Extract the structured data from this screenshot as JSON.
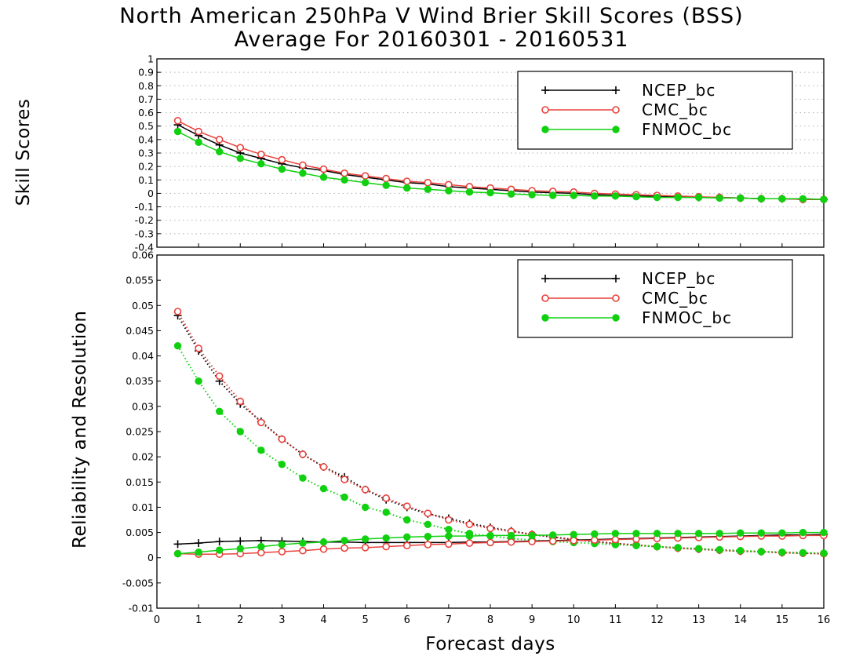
{
  "title_line1": "North American 250hPa V Wind Brier Skill Scores (BSS)",
  "title_line2": "Average For 20160301 - 20160531",
  "xlabel": "Forecast days",
  "colors": {
    "ncep": "#000000",
    "cmc": "#e8413c",
    "fnmoc": "#10d010",
    "grid": "#b0b0b0"
  },
  "legend_labels": [
    "NCEP_bc",
    "CMC_bc",
    "FNMOC_bc"
  ],
  "chart_data": [
    {
      "type": "line",
      "ylabel": "Skill Scores",
      "x": [
        0.5,
        1,
        1.5,
        2,
        2.5,
        3,
        3.5,
        4,
        4.5,
        5,
        5.5,
        6,
        6.5,
        7,
        7.5,
        8,
        8.5,
        9,
        9.5,
        10,
        10.5,
        11,
        11.5,
        12,
        12.5,
        13,
        13.5,
        14,
        14.5,
        15,
        15.5,
        16
      ],
      "xlim": [
        0,
        16
      ],
      "ylim": [
        -0.4,
        1
      ],
      "xticks": [
        "0",
        "1",
        "2",
        "3",
        "4",
        "5",
        "6",
        "7",
        "8",
        "9",
        "10",
        "11",
        "12",
        "13",
        "14",
        "15",
        "16"
      ],
      "yticks": [
        "1",
        "0.9",
        "0.8",
        "0.7",
        "0.6",
        "0.5",
        "0.4",
        "0.3",
        "0.2",
        "0.1",
        "0",
        "-0.1",
        "-0.2",
        "-0.3",
        "-0.4"
      ],
      "grid": true,
      "legend": "top-right",
      "series": [
        {
          "name": "NCEP_bc",
          "marker": "plus",
          "style": "solid",
          "values": [
            0.51,
            0.43,
            0.36,
            0.3,
            0.26,
            0.22,
            0.19,
            0.17,
            0.14,
            0.12,
            0.1,
            0.08,
            0.07,
            0.05,
            0.04,
            0.03,
            0.02,
            0.01,
            0.005,
            0.0,
            -0.01,
            -0.015,
            -0.02,
            -0.02,
            -0.025,
            -0.03,
            -0.03,
            -0.035,
            -0.04,
            -0.04,
            -0.045,
            -0.045
          ]
        },
        {
          "name": "CMC_bc",
          "marker": "circle-open",
          "style": "solid",
          "values": [
            0.54,
            0.46,
            0.4,
            0.34,
            0.29,
            0.25,
            0.21,
            0.18,
            0.15,
            0.13,
            0.11,
            0.09,
            0.08,
            0.065,
            0.05,
            0.04,
            0.03,
            0.02,
            0.015,
            0.01,
            0.0,
            -0.005,
            -0.01,
            -0.015,
            -0.02,
            -0.025,
            -0.03,
            -0.035,
            -0.04,
            -0.04,
            -0.045,
            -0.045
          ]
        },
        {
          "name": "FNMOC_bc",
          "marker": "circle-filled",
          "style": "solid",
          "values": [
            0.46,
            0.38,
            0.31,
            0.26,
            0.22,
            0.18,
            0.15,
            0.12,
            0.1,
            0.08,
            0.06,
            0.04,
            0.03,
            0.02,
            0.01,
            0.005,
            -0.005,
            -0.01,
            -0.015,
            -0.015,
            -0.02,
            -0.02,
            -0.025,
            -0.03,
            -0.03,
            -0.03,
            -0.035,
            -0.035,
            -0.04,
            -0.04,
            -0.04,
            -0.045
          ]
        }
      ]
    },
    {
      "type": "line",
      "ylabel": "Reliability and Resolution",
      "x": [
        0.5,
        1,
        1.5,
        2,
        2.5,
        3,
        3.5,
        4,
        4.5,
        5,
        5.5,
        6,
        6.5,
        7,
        7.5,
        8,
        8.5,
        9,
        9.5,
        10,
        10.5,
        11,
        11.5,
        12,
        12.5,
        13,
        13.5,
        14,
        14.5,
        15,
        15.5,
        16
      ],
      "xlim": [
        0,
        16
      ],
      "ylim": [
        -0.01,
        0.06
      ],
      "xticks": [
        "0",
        "1",
        "2",
        "3",
        "4",
        "5",
        "6",
        "7",
        "8",
        "9",
        "10",
        "11",
        "12",
        "13",
        "14",
        "15",
        "16"
      ],
      "yticks": [
        "0.06",
        "0.055",
        "0.05",
        "0.045",
        "0.04",
        "0.035",
        "0.03",
        "0.025",
        "0.02",
        "0.015",
        "0.01",
        "0.005",
        "0",
        "-0.005",
        "-0.01"
      ],
      "grid": false,
      "legend": "top-right",
      "series": [
        {
          "name": "NCEP_bc",
          "marker": "plus",
          "style": "dotted",
          "values": [
            0.048,
            0.041,
            0.035,
            0.0305,
            0.027,
            0.0235,
            0.0205,
            0.018,
            0.016,
            0.0135,
            0.0115,
            0.01,
            0.0087,
            0.0078,
            0.0068,
            0.006,
            0.0053,
            0.0046,
            0.0041,
            0.0036,
            0.0032,
            0.0028,
            0.0025,
            0.0022,
            0.0019,
            0.0017,
            0.0015,
            0.0013,
            0.0012,
            0.001,
            0.0009,
            0.0008
          ]
        },
        {
          "name": "CMC_bc",
          "marker": "circle-open",
          "style": "dotted",
          "values": [
            0.0488,
            0.0415,
            0.036,
            0.031,
            0.0268,
            0.0235,
            0.0205,
            0.018,
            0.0155,
            0.0135,
            0.0118,
            0.0102,
            0.0088,
            0.0075,
            0.0066,
            0.0058,
            0.0052,
            0.0046,
            0.0041,
            0.0036,
            0.0032,
            0.0028,
            0.0025,
            0.0022,
            0.0019,
            0.0017,
            0.0015,
            0.0013,
            0.0012,
            0.001,
            0.0009,
            0.0008
          ]
        },
        {
          "name": "FNMOC_bc",
          "marker": "circle-filled",
          "style": "dotted",
          "values": [
            0.042,
            0.035,
            0.029,
            0.025,
            0.0213,
            0.0185,
            0.0158,
            0.0137,
            0.012,
            0.01,
            0.009,
            0.0075,
            0.0066,
            0.0056,
            0.0048,
            0.0043,
            0.0038,
            0.0035,
            0.0032,
            0.003,
            0.0028,
            0.0026,
            0.0024,
            0.0022,
            0.002,
            0.0018,
            0.0016,
            0.0014,
            0.0012,
            0.0011,
            0.001,
            0.0009
          ]
        },
        {
          "name": "NCEP_bc",
          "marker": "plus",
          "style": "solid",
          "values": [
            0.0027,
            0.0029,
            0.0032,
            0.0033,
            0.0034,
            0.0033,
            0.0032,
            0.0031,
            0.0031,
            0.003,
            0.003,
            0.003,
            0.003,
            0.003,
            0.0031,
            0.0031,
            0.0032,
            0.0033,
            0.0034,
            0.0035,
            0.0036,
            0.0037,
            0.0038,
            0.0039,
            0.004,
            0.0041,
            0.0042,
            0.0043,
            0.0044,
            0.0045,
            0.0045,
            0.0046
          ]
        },
        {
          "name": "CMC_bc",
          "marker": "circle-open",
          "style": "solid",
          "values": [
            0.0008,
            0.0007,
            0.0007,
            0.0008,
            0.001,
            0.0012,
            0.0014,
            0.0017,
            0.0019,
            0.002,
            0.0022,
            0.0024,
            0.0026,
            0.0027,
            0.0029,
            0.003,
            0.0031,
            0.0032,
            0.0033,
            0.0034,
            0.0035,
            0.0036,
            0.0037,
            0.0038,
            0.0039,
            0.004,
            0.0041,
            0.0042,
            0.0043,
            0.0043,
            0.0044,
            0.0044
          ]
        },
        {
          "name": "FNMOC_bc",
          "marker": "circle-filled",
          "style": "solid",
          "values": [
            0.0008,
            0.0011,
            0.0015,
            0.0018,
            0.0022,
            0.0026,
            0.0029,
            0.0031,
            0.0034,
            0.0037,
            0.0039,
            0.0041,
            0.0042,
            0.0043,
            0.0043,
            0.0044,
            0.0044,
            0.0044,
            0.0045,
            0.0046,
            0.0047,
            0.0048,
            0.0048,
            0.0048,
            0.0048,
            0.0048,
            0.0048,
            0.0049,
            0.0049,
            0.0049,
            0.005,
            0.005
          ]
        }
      ]
    }
  ]
}
